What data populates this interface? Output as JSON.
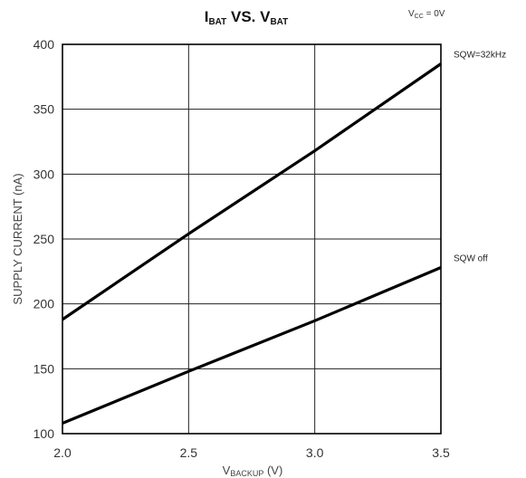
{
  "chart_data": {
    "type": "line",
    "title": {
      "main": "I",
      "main_sub": "BAT",
      "mid": " VS. V",
      "mid_sub": "BAT"
    },
    "condition": {
      "main": "V",
      "sub": "CC",
      "rest": " = 0V"
    },
    "xlabel": {
      "main": "V",
      "sub": "BACKUP",
      "rest": " (V)"
    },
    "ylabel": "SUPPLY CURRENT (nA)",
    "xlim": [
      2.0,
      3.5
    ],
    "ylim": [
      100,
      400
    ],
    "xticks": [
      "2.0",
      "2.5",
      "3.0",
      "3.5"
    ],
    "yticks": [
      "100",
      "150",
      "200",
      "250",
      "300",
      "350",
      "400"
    ],
    "grid": true,
    "series": [
      {
        "name": "SQW=32kHz",
        "x": [
          2.0,
          2.5,
          3.0,
          3.5
        ],
        "y": [
          188,
          254,
          318,
          385
        ]
      },
      {
        "name": "SQW off",
        "x": [
          2.0,
          2.5,
          3.0,
          3.5
        ],
        "y": [
          108,
          148,
          187,
          228
        ]
      }
    ]
  }
}
